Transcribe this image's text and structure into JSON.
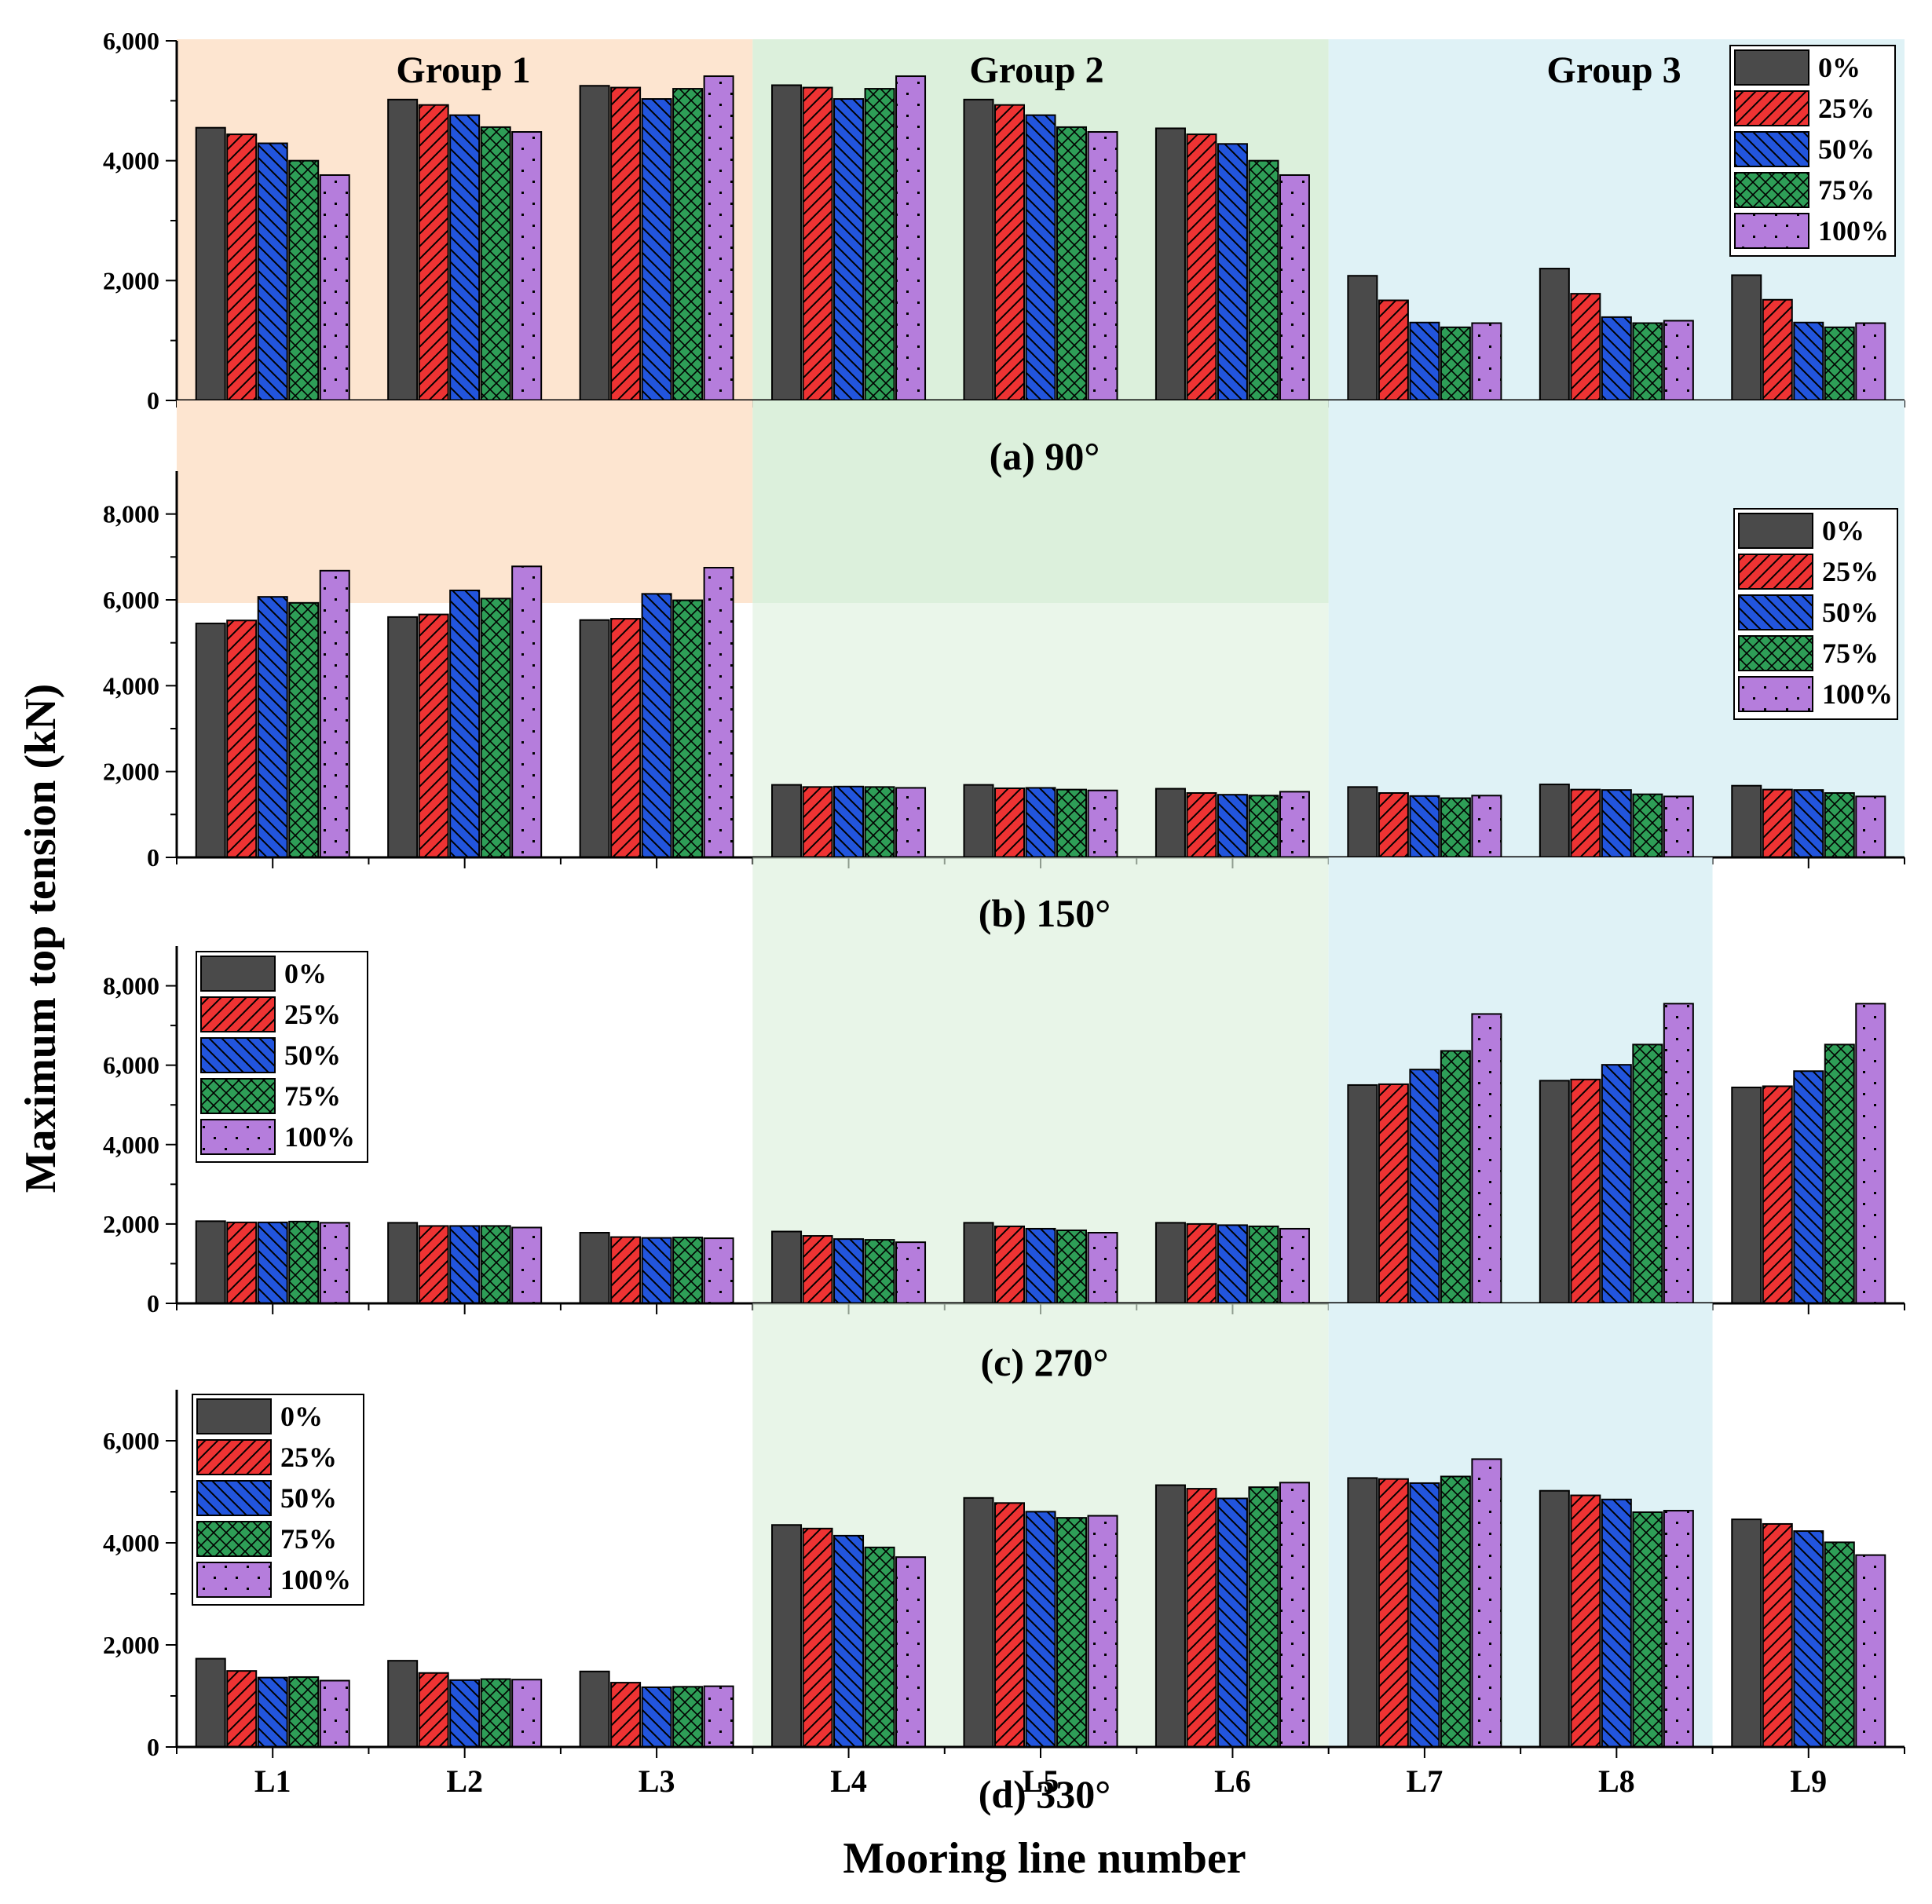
{
  "chart_data": {
    "type": "bar",
    "ylabel": "Maximum top tension (kN)",
    "xlabel": "Mooring line number",
    "categories": [
      "L1",
      "L2",
      "L3",
      "L4",
      "L5",
      "L6",
      "L7",
      "L8",
      "L9"
    ],
    "series_names": [
      "0%",
      "25%",
      "50%",
      "75%",
      "100%"
    ],
    "group_labels": [
      "Group 1",
      "Group 2",
      "Group 3"
    ],
    "colors": {
      "series": [
        "#4a4a4a",
        "#ee3333",
        "#2255dd",
        "#2e9e57",
        "#b57ddc"
      ],
      "group1_bg": "#fde5d0",
      "group2_bg": "#dcf0dc",
      "group3_bg": "#dff2f6"
    },
    "panels": [
      {
        "caption": "(a) 90°",
        "ylim": [
          0,
          6000
        ],
        "yticks": [
          0,
          2000,
          4000,
          6000
        ],
        "ytick_labels": [
          "0",
          "2,000",
          "4,000",
          "6,000"
        ],
        "legend_position": "top-right",
        "series": [
          {
            "name": "0%",
            "values": [
              4550,
              5020,
              5250,
              5260,
              5020,
              4540,
              2080,
              2200,
              2090
            ]
          },
          {
            "name": "25%",
            "values": [
              4440,
              4930,
              5220,
              5220,
              4930,
              4440,
              1670,
              1780,
              1680
            ]
          },
          {
            "name": "50%",
            "values": [
              4290,
              4760,
              5030,
              5030,
              4760,
              4280,
              1300,
              1390,
              1300
            ]
          },
          {
            "name": "75%",
            "values": [
              4000,
              4560,
              5200,
              5200,
              4560,
              4000,
              1220,
              1290,
              1220
            ]
          },
          {
            "name": "100%",
            "values": [
              3760,
              4480,
              5410,
              5410,
              4480,
              3760,
              1290,
              1330,
              1290
            ]
          }
        ]
      },
      {
        "caption": "(b) 150°",
        "ylim": [
          0,
          9000
        ],
        "yticks": [
          0,
          2000,
          4000,
          6000,
          8000
        ],
        "ytick_labels": [
          "0",
          "2,000",
          "4,000",
          "6,000",
          "8,000"
        ],
        "legend_position": "top-right",
        "series": [
          {
            "name": "0%",
            "values": [
              5450,
              5600,
              5530,
              1690,
              1690,
              1600,
              1640,
              1700,
              1670
            ]
          },
          {
            "name": "25%",
            "values": [
              5520,
              5660,
              5560,
              1640,
              1610,
              1500,
              1500,
              1580,
              1580
            ]
          },
          {
            "name": "50%",
            "values": [
              6070,
              6220,
              6140,
              1650,
              1620,
              1460,
              1430,
              1570,
              1570
            ]
          },
          {
            "name": "75%",
            "values": [
              5930,
              6030,
              5990,
              1640,
              1580,
              1440,
              1380,
              1470,
              1500
            ]
          },
          {
            "name": "100%",
            "values": [
              6680,
              6780,
              6750,
              1620,
              1560,
              1530,
              1440,
              1420,
              1420
            ]
          }
        ]
      },
      {
        "caption": "(c) 270°",
        "ylim": [
          0,
          9000
        ],
        "yticks": [
          0,
          2000,
          4000,
          6000,
          8000
        ],
        "ytick_labels": [
          "0",
          "2,000",
          "4,000",
          "6,000",
          "8,000"
        ],
        "legend_position": "top-left",
        "series": [
          {
            "name": "0%",
            "values": [
              2070,
              2030,
              1780,
              1810,
              2030,
              2030,
              5500,
              5610,
              5440
            ]
          },
          {
            "name": "25%",
            "values": [
              2040,
              1950,
              1670,
              1700,
              1940,
              2000,
              5520,
              5640,
              5470
            ]
          },
          {
            "name": "50%",
            "values": [
              2040,
              1950,
              1650,
              1620,
              1880,
              1970,
              5890,
              6010,
              5850
            ]
          },
          {
            "name": "75%",
            "values": [
              2060,
              1950,
              1660,
              1600,
              1840,
              1940,
              6360,
              6520,
              6520
            ]
          },
          {
            "name": "100%",
            "values": [
              2030,
              1910,
              1640,
              1540,
              1780,
              1880,
              7290,
              7550,
              7550
            ]
          }
        ]
      },
      {
        "caption": "(d) 330°",
        "ylim": [
          0,
          7000
        ],
        "yticks": [
          0,
          2000,
          4000,
          6000
        ],
        "ytick_labels": [
          "0",
          "2,000",
          "4,000",
          "6,000"
        ],
        "legend_position": "top-left",
        "series": [
          {
            "name": "0%",
            "values": [
              1730,
              1690,
              1480,
              4350,
              4880,
              5130,
              5270,
              5020,
              4460
            ]
          },
          {
            "name": "25%",
            "values": [
              1490,
              1450,
              1260,
              4280,
              4780,
              5060,
              5250,
              4930,
              4370
            ]
          },
          {
            "name": "50%",
            "values": [
              1360,
              1310,
              1170,
              4140,
              4610,
              4870,
              5170,
              4850,
              4230
            ]
          },
          {
            "name": "75%",
            "values": [
              1370,
              1330,
              1180,
              3910,
              4490,
              5090,
              5300,
              4600,
              4010
            ]
          },
          {
            "name": "100%",
            "values": [
              1300,
              1320,
              1190,
              3720,
              4530,
              5180,
              5640,
              4630,
              3760
            ]
          }
        ]
      }
    ]
  }
}
